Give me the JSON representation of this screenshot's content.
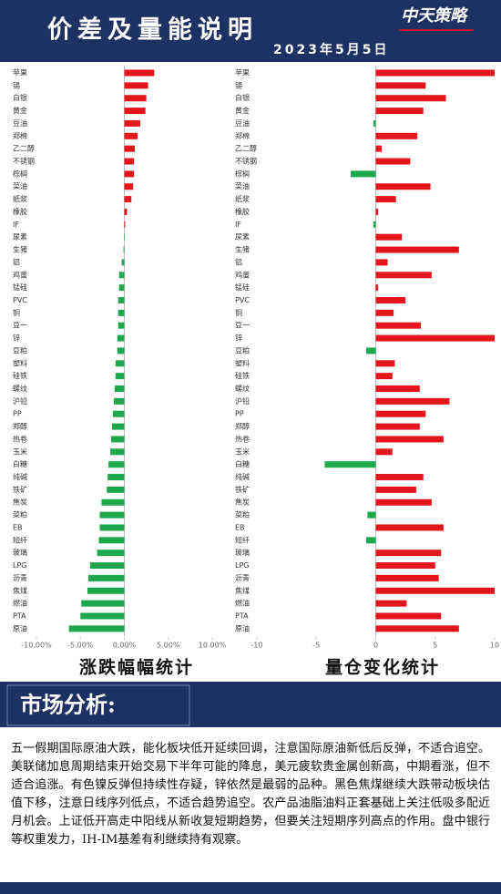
{
  "header": {
    "title": "价差及量能说明",
    "logo": "中天策略",
    "date": "2023年5月5日"
  },
  "chart_data": [
    {
      "type": "bar",
      "orientation": "horizontal",
      "title": "涨跌幅幅统计",
      "categories": [
        "苹果",
        "锡",
        "白银",
        "黄金",
        "豆油",
        "郑棉",
        "乙二醇",
        "不锈钢",
        "棕榈",
        "菜油",
        "纸浆",
        "橡胶",
        "IF",
        "尿素",
        "生猪",
        "铝",
        "鸡蛋",
        "锰硅",
        "PVC",
        "铜",
        "豆一",
        "锌",
        "豆粕",
        "塑料",
        "硅铁",
        "螺纹",
        "沪铅",
        "PP",
        "郑醇",
        "热卷",
        "玉米",
        "白糖",
        "纯碱",
        "铁矿",
        "焦炭",
        "菜粕",
        "EB",
        "短纤",
        "玻璃",
        "LPG",
        "沥青",
        "焦煤",
        "燃油",
        "PTA",
        "原油"
      ],
      "values": [
        3.4,
        2.7,
        2.5,
        2.4,
        1.8,
        1.5,
        1.2,
        1.1,
        1.1,
        1.0,
        0.8,
        0.3,
        0.1,
        -0.05,
        -0.1,
        -0.3,
        -0.6,
        -0.6,
        -0.7,
        -0.7,
        -0.7,
        -0.8,
        -0.8,
        -1.0,
        -1.0,
        -1.1,
        -1.2,
        -1.3,
        -1.4,
        -1.5,
        -1.6,
        -1.8,
        -1.9,
        -2.0,
        -2.6,
        -2.8,
        -2.8,
        -2.9,
        -3.1,
        -3.9,
        -4.1,
        -4.2,
        -4.9,
        -5.0,
        -6.3
      ],
      "positive_color": "#e3161d",
      "negative_color": "#1ea84c",
      "xlim": [
        -10,
        10
      ],
      "xticks": [
        {
          "value": -10,
          "label": "-10.00%"
        },
        {
          "value": -5,
          "label": "-5.00%"
        },
        {
          "value": 0,
          "label": "0.00%"
        },
        {
          "value": 5,
          "label": "5.00%"
        },
        {
          "value": 10,
          "label": "10.00%"
        }
      ]
    },
    {
      "type": "bar",
      "orientation": "horizontal",
      "title": "量仓变化统计",
      "categories": [
        "苹果",
        "锡",
        "白银",
        "黄金",
        "豆油",
        "郑棉",
        "乙二醇",
        "不锈钢",
        "棕榈",
        "菜油",
        "纸浆",
        "橡胶",
        "IF",
        "尿素",
        "生猪",
        "铝",
        "鸡蛋",
        "锰硅",
        "PVC",
        "铜",
        "豆一",
        "锌",
        "豆粕",
        "塑料",
        "硅铁",
        "螺纹",
        "沪铅",
        "PP",
        "郑醇",
        "热卷",
        "玉米",
        "白糖",
        "纯碱",
        "铁矿",
        "焦炭",
        "菜粕",
        "EB",
        "短纤",
        "玻璃",
        "LPG",
        "沥青",
        "焦煤",
        "燃油",
        "PTA",
        "原油"
      ],
      "values": [
        10,
        4.2,
        5.9,
        4.0,
        -0.2,
        3.5,
        0.5,
        2.9,
        -2.1,
        4.6,
        1.7,
        0.2,
        -0.2,
        2.2,
        7.0,
        1.0,
        4.7,
        0.2,
        2.5,
        1.5,
        3.8,
        10,
        -0.8,
        1.6,
        1.4,
        3.7,
        6.2,
        4.2,
        3.7,
        5.7,
        1.4,
        -4.3,
        4.0,
        3.4,
        4.7,
        -0.7,
        5.7,
        -0.8,
        5.5,
        5.0,
        5.3,
        10,
        2.6,
        5.5,
        7.0
      ],
      "positive_color": "#e3161d",
      "negative_color": "#1ea84c",
      "xlim": [
        -10,
        10
      ],
      "xticks": [
        -10,
        -5,
        0,
        5,
        10
      ]
    }
  ],
  "analysis": {
    "heading": "市场分析:",
    "text": "五一假期国际原油大跌，能化板块低开延续回调，注意国际原油新低后反弹，不适合追空。美联储加息周期结束开始交易下半年可能的降息，美元疲软贵金属创新高，中期看涨，但不适合追涨。有色镍反弹但持续性存疑，锌依然是最弱的品种。黑色焦煤继续大跌带动板块估值下移，注意日线序列低点，不适合趋势追空。农产品油脂油料正套基础上关注低吸多配近月机会。上证低开高走中阳线从新收复短期趋势，但要关注短期序列高点的作用。盘中银行等权重发力，IH-IM基差有利继续持有观察。"
  }
}
